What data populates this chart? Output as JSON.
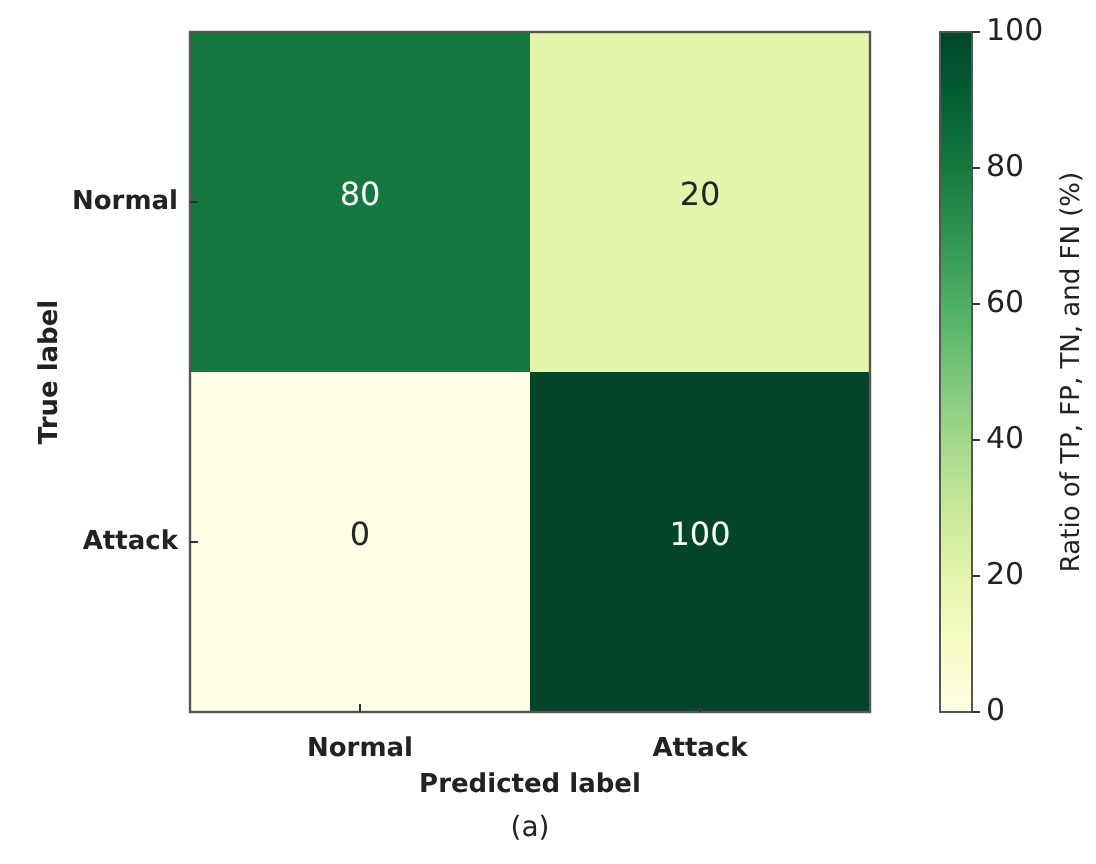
{
  "chart_data": {
    "type": "heatmap",
    "categories": [
      "Normal",
      "Attack"
    ],
    "y_categories": [
      "Normal",
      "Attack"
    ],
    "cells": [
      [
        80,
        20
      ],
      [
        0,
        100
      ]
    ],
    "xlabel": "Predicted label",
    "ylabel": "True label",
    "clabel": "Ratio of TP, FP, TN, and FN (%)",
    "clim": [
      0,
      100
    ],
    "cticks": [
      0,
      20,
      40,
      60,
      80,
      100
    ],
    "data_labels": true,
    "grid": false,
    "annotations": [
      "(a)"
    ]
  }
}
